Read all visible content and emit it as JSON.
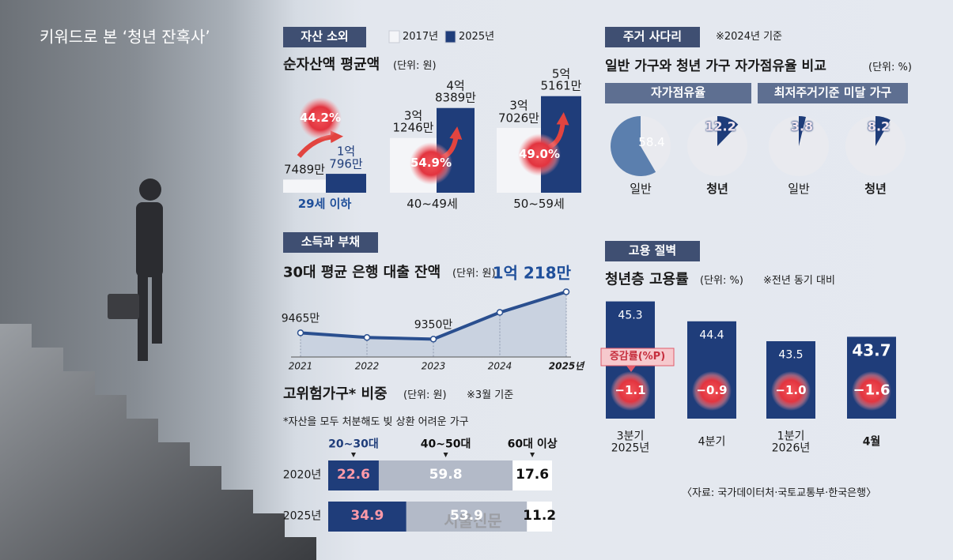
{
  "title": "키워드로 본 ‘청년 잔혹사’",
  "source": "〈자료: 국가데이터처·국토교통부·한국은행〉",
  "watermark": "서울신문",
  "chart_data": [
    {
      "type": "grouped-bar",
      "section": "자산 소외",
      "title": "순자산액 평균액",
      "unit": "(단위: 원)",
      "categories": [
        "29세 이하",
        "40~49세",
        "50~59세"
      ],
      "series": [
        {
          "name": "2017년",
          "color": "#f4f5f8",
          "values": [
            74890000,
            312460000,
            370260000
          ],
          "value_labels": [
            "7489만",
            "3억\n1246만",
            "3억\n7026만"
          ]
        },
        {
          "name": "2025년",
          "color": "#1f3d7a",
          "values": [
            107960000,
            483890000,
            551610000
          ],
          "value_labels": [
            "1억\n796만",
            "4억\n8389만",
            "5억\n5161만"
          ]
        }
      ],
      "growth": [
        44.2,
        54.9,
        49.0
      ],
      "growth_labels": [
        "44.2%",
        "54.9%",
        "49.0%"
      ],
      "ylim": [
        0,
        600000000
      ]
    },
    {
      "type": "line-area",
      "section": "소득과 부채",
      "title": "30대 평균 은행 대출 잔액",
      "unit": "(단위: 원)",
      "categories": [
        "2021",
        "2022",
        "2023",
        "2024",
        "2025년"
      ],
      "values": [
        94650000,
        93800000,
        93500000,
        98400000,
        102180000
      ],
      "value_labels": [
        "9465만",
        null,
        "9350만",
        null,
        "1억 218만"
      ],
      "color": "#2a4f8f",
      "ylim": [
        85000000,
        105000000
      ]
    },
    {
      "type": "stacked-hbar",
      "title": "고위험가구* 비중",
      "unit": "(단위: 원)",
      "note": "※3월 기준",
      "footnote": "*자산을 모두 처분해도 빚 상환 어려운 가구",
      "categories": [
        "2020년",
        "2025년"
      ],
      "series": [
        {
          "name": "20~30대",
          "color": "#1f3d7a",
          "values": [
            22.6,
            34.9
          ]
        },
        {
          "name": "40~50대",
          "color": "#b3bac8",
          "values": [
            59.8,
            53.9
          ]
        },
        {
          "name": "60대 이상",
          "color": "#ffffff",
          "values": [
            17.6,
            11.2
          ]
        }
      ],
      "xlim": [
        0,
        100
      ]
    },
    {
      "type": "pie-grid",
      "section": "주거 사다리",
      "note": "※2024년 기준",
      "title": "일반 가구와 청년 가구 자가점유율 비교",
      "unit": "(단위: %)",
      "groups": [
        {
          "name": "자가점유율",
          "categories": [
            "일반",
            "청년"
          ],
          "values": [
            58.4,
            12.2
          ],
          "colors": [
            "#5b7fae",
            "#1f3d7a"
          ]
        },
        {
          "name": "최저주거기준 미달 가구",
          "categories": [
            "일반",
            "청년"
          ],
          "values": [
            3.8,
            8.2
          ],
          "colors": [
            "#1f3d7a",
            "#1f3d7a"
          ]
        }
      ]
    },
    {
      "type": "bar",
      "section": "고용 절벽",
      "title": "청년층 고용률",
      "unit": "(단위: %)",
      "note": "※전년 동기 대비",
      "categories": [
        "3분기\n2025년",
        "4분기",
        "1분기\n2026년",
        "4월"
      ],
      "values": [
        45.3,
        44.4,
        43.5,
        43.7
      ],
      "color": "#1f3d7a",
      "change_label": "증감률(%P)",
      "change": [
        -1.1,
        -0.9,
        -1.0,
        -1.6
      ],
      "change_labels": [
        "−1.1",
        "−0.9",
        "−1.0",
        "−1.6"
      ],
      "ylim": [
        40,
        46
      ]
    }
  ]
}
